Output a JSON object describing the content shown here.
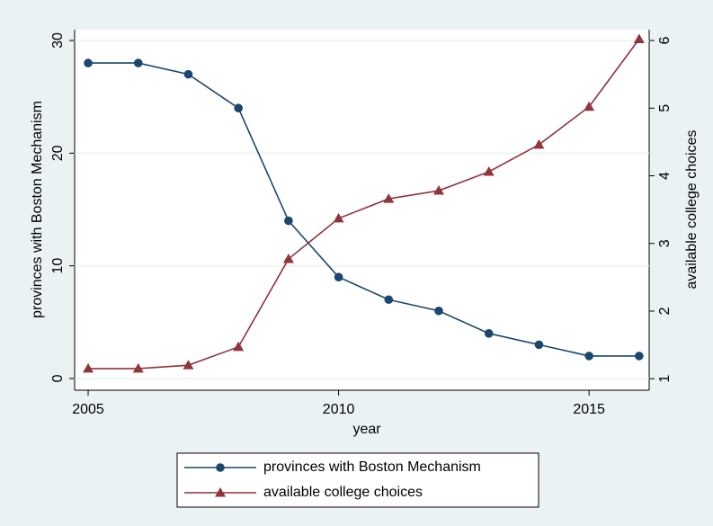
{
  "chart_data": {
    "type": "line",
    "x_label": "year",
    "y_label": "provinces with Boston Mechanism",
    "y2_label": "available college choices",
    "x": [
      2005,
      2006,
      2007,
      2008,
      2009,
      2010,
      2011,
      2012,
      2013,
      2014,
      2015,
      2016
    ],
    "series": [
      {
        "name": "provinces with Boston Mechanism",
        "color": "#1a476f",
        "marker": "circle",
        "values": [
          28,
          28,
          27,
          24,
          14,
          9,
          7,
          6,
          4,
          3,
          2,
          2
        ]
      },
      {
        "name": "available college choices",
        "color": "#90353b",
        "marker": "triangle",
        "axis": "y2",
        "values": [
          1.15,
          1.15,
          1.2,
          1.47,
          2.77,
          3.37,
          3.66,
          3.78,
          4.06,
          4.46,
          5.02,
          6.02
        ]
      }
    ],
    "xlim": [
      2004.73,
      2016.2
    ],
    "xticks": [
      2005,
      2010,
      2015
    ],
    "ylim": [
      -1.04,
      30.96
    ],
    "yticks": [
      0,
      10,
      20,
      30
    ],
    "y2lim": [
      0.83,
      6.16
    ],
    "y2ticks": [
      1,
      2,
      3,
      4,
      5,
      6
    ],
    "grid": true,
    "legend": "bottom"
  }
}
